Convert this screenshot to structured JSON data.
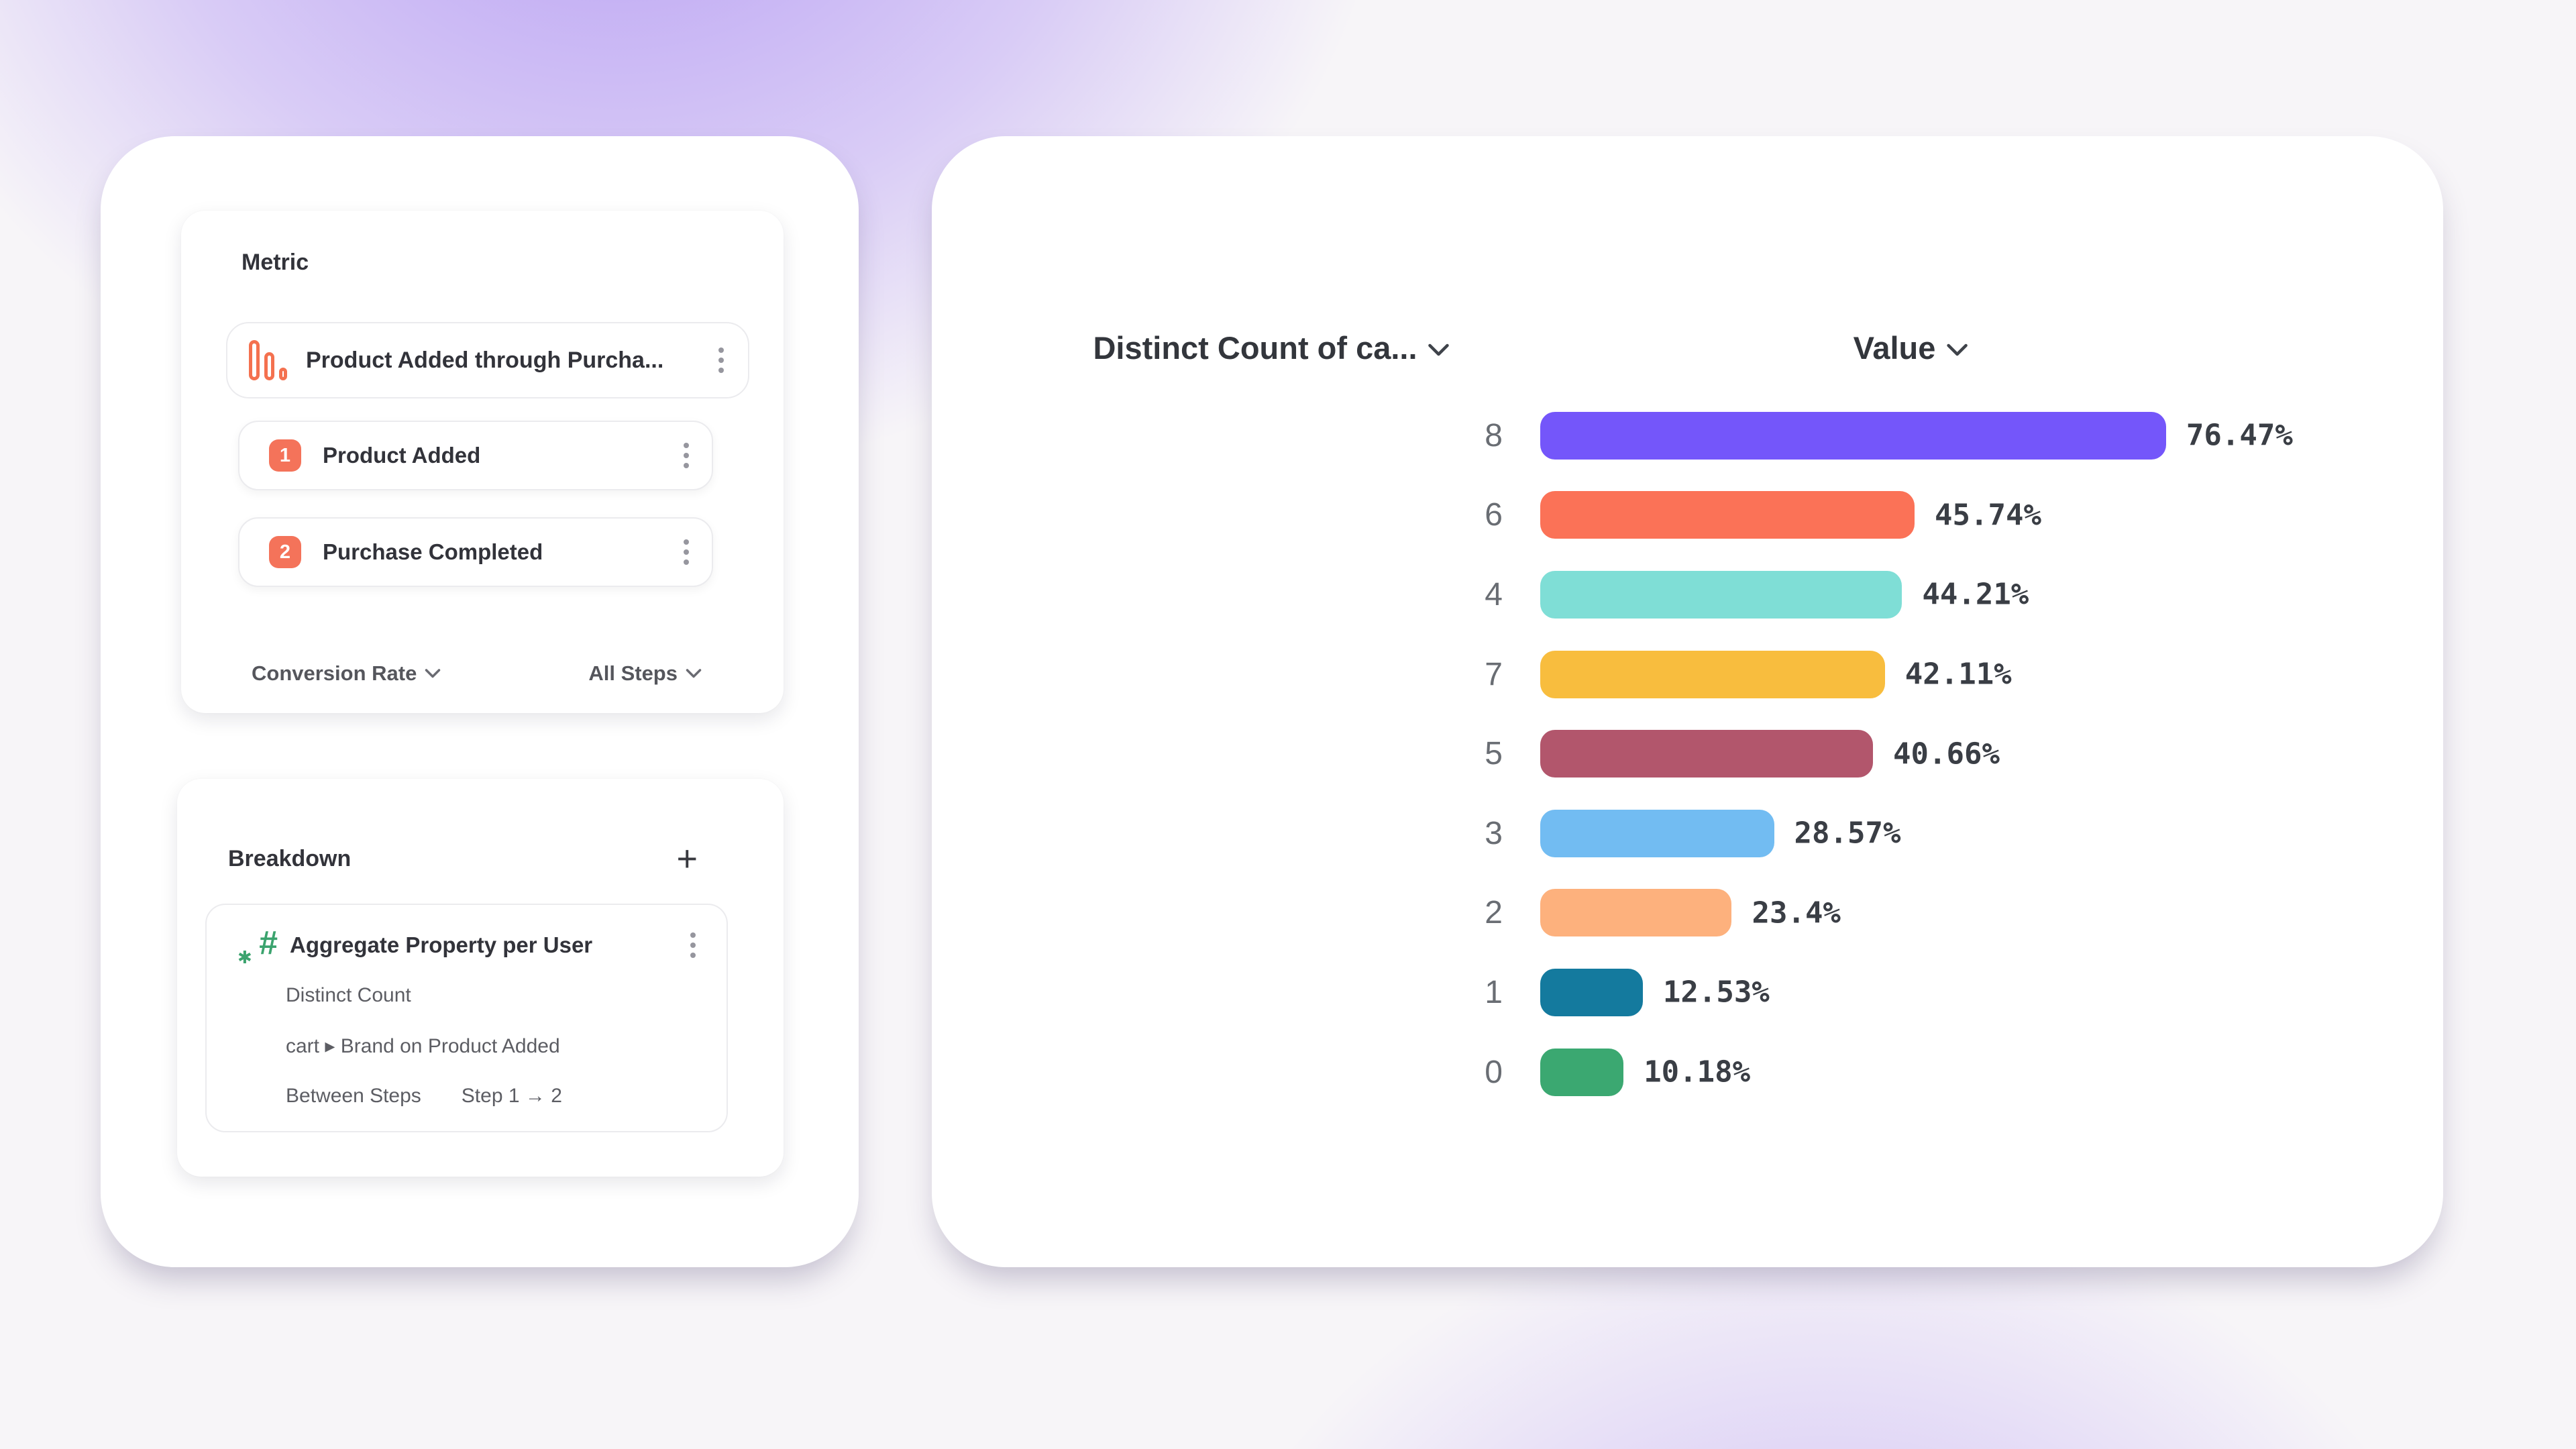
{
  "colors": {
    "accent_coral": "#F4735A",
    "funnel_icon_orange": "#F4714F",
    "aggregate_icon_green": "#3BA36E",
    "card_background": "#ffffff",
    "background_glow_purple": "#8A61F0",
    "border_light": "#ebebee",
    "text_dark": "#32333a",
    "text_secondary": "#5c5d63"
  },
  "left_panel": {
    "metric_card": {
      "title": "Metric",
      "main_row": {
        "icon": "funnel-chart-icon",
        "label": "Product Added through Purcha..."
      },
      "steps": [
        {
          "number": "1",
          "label": "Product Added"
        },
        {
          "number": "2",
          "label": "Purchase Completed"
        }
      ],
      "footer": {
        "left_dropdown": "Conversion Rate",
        "right_dropdown": "All Steps"
      }
    },
    "breakdown_card": {
      "title": "Breakdown",
      "add_button": "+",
      "item": {
        "icon": "numeric-aggregate-icon",
        "title": "Aggregate Property per User",
        "aggregation": "Distinct Count",
        "property": "cart ▸ Brand on Product Added",
        "between_steps_label": "Between Steps",
        "between_steps_value": "Step 1 → 2"
      }
    }
  },
  "chart_panel": {
    "left_header": "Distinct Count of ca...",
    "right_header": "Value"
  },
  "chart_data": {
    "type": "bar",
    "orientation": "horizontal",
    "title": "",
    "xlabel": "Value",
    "ylabel": "Distinct Count of ca...",
    "xlim": [
      0,
      100
    ],
    "grid": false,
    "categories": [
      "8",
      "6",
      "4",
      "7",
      "5",
      "3",
      "2",
      "1",
      "0"
    ],
    "values": [
      76.47,
      45.74,
      44.21,
      42.11,
      40.66,
      28.57,
      23.4,
      12.53,
      10.18
    ],
    "labels": [
      "76.47%",
      "45.74%",
      "44.21%",
      "42.11%",
      "40.66%",
      "28.57%",
      "23.4%",
      "12.53%",
      "10.18%"
    ],
    "bar_colors": [
      "#7456FA",
      "#FB7257",
      "#7FDED6",
      "#F8BD3E",
      "#B2566C",
      "#72BCF2",
      "#FDB17D",
      "#147A9E",
      "#3BA871"
    ]
  }
}
